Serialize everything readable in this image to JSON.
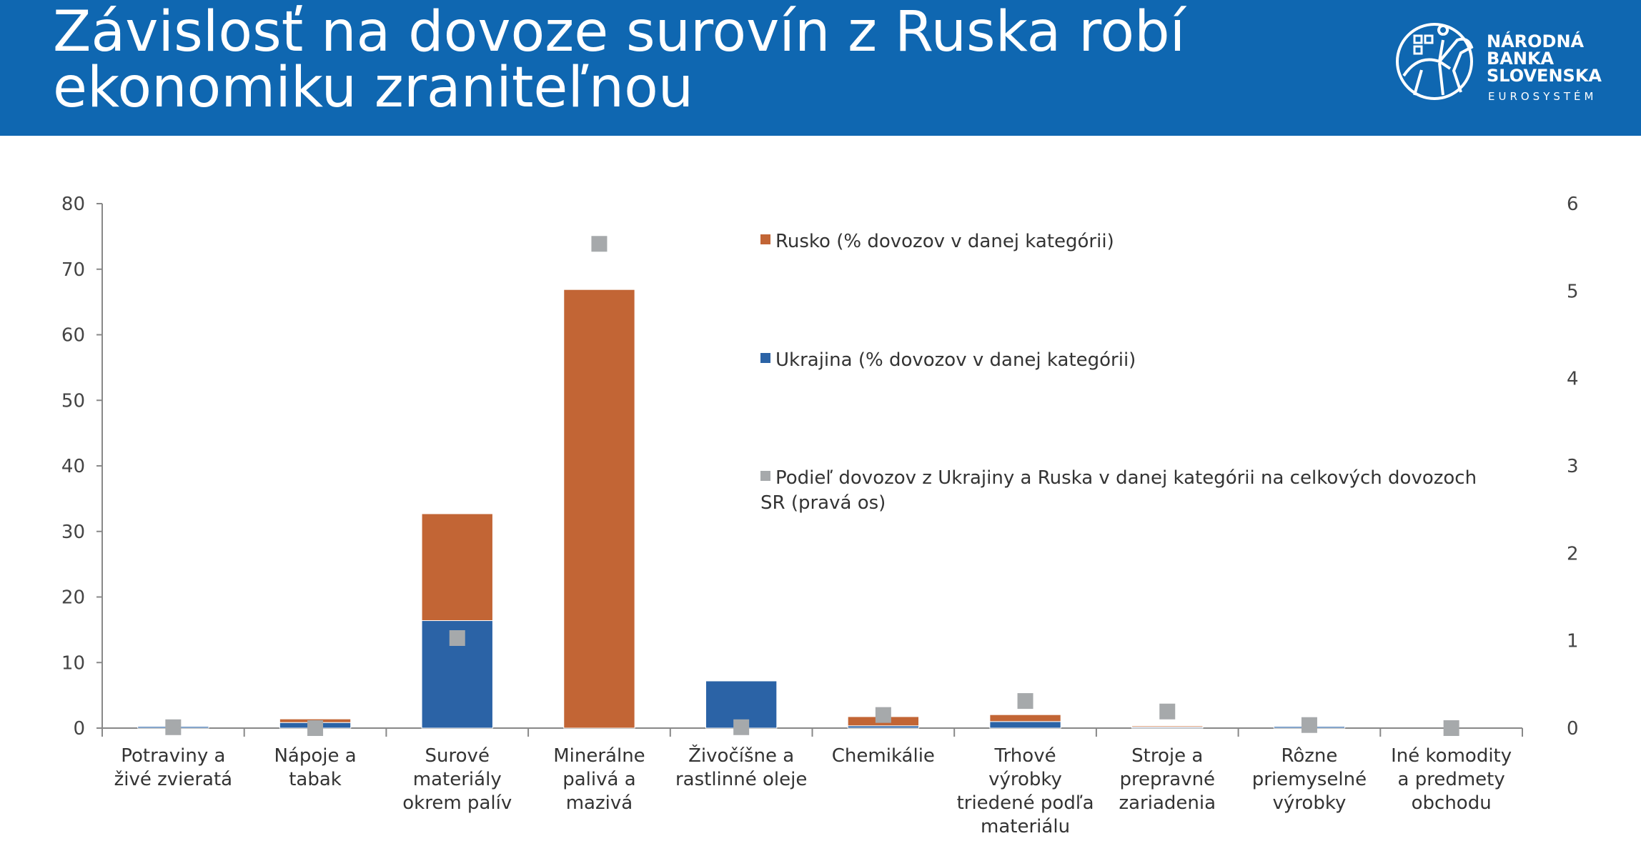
{
  "header": {
    "title_line1": "Závislosť na dovoze surovín z Ruska robí",
    "title_line2": "ekonomiku zraniteľnou",
    "logo_lines": [
      "NÁRODNÁ",
      "BANKA",
      "SLOVENSKA"
    ],
    "logo_sub": "EUROSYSTÉM",
    "background": "#0f67b1"
  },
  "chart_data": {
    "type": "bar",
    "stacked": true,
    "categories": [
      [
        "Potraviny a",
        "živé zvieratá"
      ],
      [
        "Nápoje a",
        "tabak"
      ],
      [
        "Surové",
        "materiály",
        "okrem palív"
      ],
      [
        "Minerálne",
        "palivá a",
        "mazivá"
      ],
      [
        "Živočíšne a",
        "rastlinné oleje"
      ],
      [
        "Chemikálie"
      ],
      [
        "Trhové",
        "výrobky",
        "triedené podľa",
        "materiálu"
      ],
      [
        "Stroje a",
        "prepravné",
        "zariadenia"
      ],
      [
        "Rôzne",
        "priemyselné",
        "výrobky"
      ],
      [
        "Iné komodity",
        "a predmety",
        "obchodu"
      ]
    ],
    "series": [
      {
        "name": "Ukrajina (% dovozov v danej kategórii)",
        "type": "bar",
        "axis": "left",
        "color": "#2b63a6",
        "values": [
          0.25,
          0.85,
          16.4,
          0,
          7.2,
          0.35,
          1.0,
          0.15,
          0.25,
          0
        ]
      },
      {
        "name": "Rusko (% dovozov v danej kategórii)",
        "type": "bar",
        "axis": "left",
        "color": "#c26535",
        "values": [
          0.1,
          0.55,
          16.3,
          66.9,
          0.1,
          1.4,
          1.05,
          0.18,
          0.1,
          0
        ]
      },
      {
        "name": "Podiel dovozov z Ukrajiny a Ruska v danej kategórii na celkových dovozoch SR (pravá os)",
        "type": "marker",
        "axis": "right",
        "color": "#a6a9ab",
        "values": [
          0.01,
          0.0,
          1.03,
          5.54,
          0.01,
          0.15,
          0.31,
          0.19,
          0.035,
          0
        ]
      }
    ],
    "legend_order": [
      1,
      0,
      2
    ],
    "legend_lines": [
      [
        "Rusko (% dovozov v danej kategórii)"
      ],
      [
        "Ukrajina (% dovozov v danej kategórii)"
      ],
      [
        "Podieľ dovozov z Ukrajiny a Ruska v danej kategórii na celkových dovozoch",
        "SR (pravá os)"
      ]
    ],
    "ylim": [
      0,
      80
    ],
    "yticks": [
      0,
      10,
      20,
      30,
      40,
      50,
      60,
      70,
      80
    ],
    "y2lim": [
      0,
      6
    ],
    "y2ticks": [
      0,
      1,
      2,
      3,
      4,
      5,
      6
    ],
    "grid": false,
    "legend_position": "center-right"
  }
}
